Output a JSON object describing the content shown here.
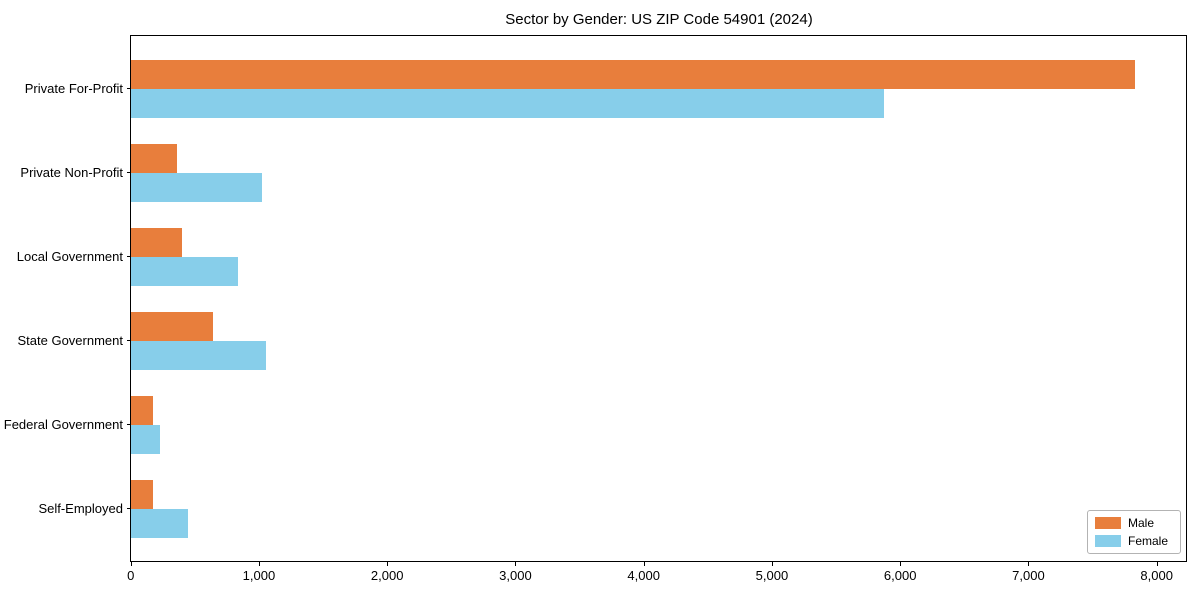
{
  "chart_data": {
    "type": "bar",
    "orientation": "horizontal",
    "title": "Sector by Gender: US ZIP Code 54901 (2024)",
    "categories": [
      "Private For-Profit",
      "Private Non-Profit",
      "Local Government",
      "State Government",
      "Federal Government",
      "Self-Employed"
    ],
    "series": [
      {
        "name": "Male",
        "color": "#e87e3c",
        "values": [
          7830,
          360,
          400,
          640,
          175,
          175
        ]
      },
      {
        "name": "Female",
        "color": "#87ceea",
        "values": [
          5875,
          1020,
          835,
          1055,
          225,
          445
        ]
      }
    ],
    "xlabel": "",
    "ylabel": "",
    "x_tick_labels": [
      "0",
      "1,000",
      "2,000",
      "3,000",
      "4,000",
      "5,000",
      "6,000",
      "7,000",
      "8,000"
    ],
    "x_tick_values": [
      0,
      1000,
      2000,
      3000,
      4000,
      5000,
      6000,
      7000,
      8000
    ],
    "xlim": [
      0,
      8234
    ],
    "grid": false,
    "legend": {
      "position": "lower right"
    },
    "colors": {
      "axis": "#000000",
      "legend_border": "#b3b3b3",
      "background": "#ffffff"
    }
  }
}
